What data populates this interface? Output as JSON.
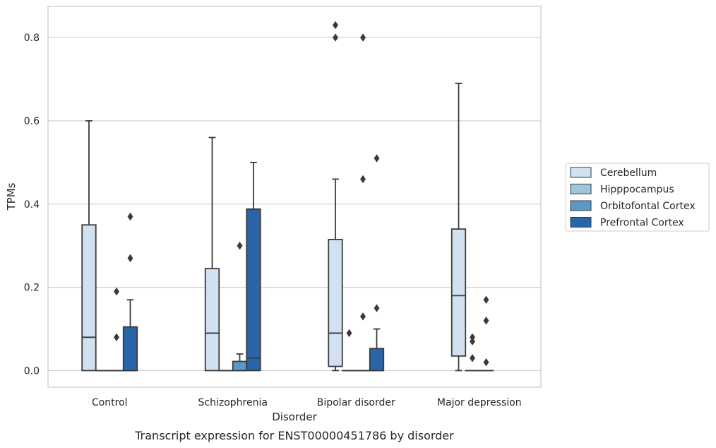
{
  "chart_data": {
    "type": "box",
    "caption": "Transcript expression for ENST00000451786 by disorder",
    "xlabel": "Disorder",
    "ylabel": "TPMs",
    "ylim": [
      -0.04,
      0.875
    ],
    "yticks": [
      0.0,
      0.2,
      0.4,
      0.6,
      0.8
    ],
    "ytick_labels": [
      "0.0",
      "0.2",
      "0.4",
      "0.6",
      "0.8"
    ],
    "grid": "horizontal",
    "legend_position": "right",
    "categories": [
      "Control",
      "Schizophrenia",
      "Bipolar disorder",
      "Major depression"
    ],
    "series": [
      {
        "name": "Cerebellum",
        "color": "#d2e1f0",
        "boxes": [
          {
            "whislo": 0.0,
            "q1": 0.0,
            "med": 0.08,
            "q3": 0.35,
            "whishi": 0.6,
            "fliers": []
          },
          {
            "whislo": 0.0,
            "q1": 0.0,
            "med": 0.09,
            "q3": 0.245,
            "whishi": 0.56,
            "fliers": []
          },
          {
            "whislo": 0.0,
            "q1": 0.01,
            "med": 0.09,
            "q3": 0.315,
            "whishi": 0.46,
            "fliers": [
              0.8,
              0.83
            ]
          },
          {
            "whislo": 0.0,
            "q1": 0.035,
            "med": 0.18,
            "q3": 0.34,
            "whishi": 0.69,
            "fliers": []
          }
        ]
      },
      {
        "name": "Hipppocampus",
        "color": "#9ec4de",
        "boxes": [
          {
            "whislo": 0.0,
            "q1": 0.0,
            "med": 0.0,
            "q3": 0.0,
            "whishi": 0.0,
            "fliers": []
          },
          {
            "whislo": 0.0,
            "q1": 0.0,
            "med": 0.0,
            "q3": 0.0,
            "whishi": 0.0,
            "fliers": []
          },
          {
            "whislo": 0.0,
            "q1": 0.0,
            "med": 0.0,
            "q3": 0.0,
            "whishi": 0.0,
            "fliers": [
              0.09
            ]
          },
          {
            "whislo": 0.0,
            "q1": 0.0,
            "med": 0.0,
            "q3": 0.0,
            "whishi": 0.0,
            "fliers": [
              0.03,
              0.07,
              0.08
            ]
          }
        ]
      },
      {
        "name": "Orbitofontal Cortex",
        "color": "#5a99c6",
        "boxes": [
          {
            "whislo": 0.0,
            "q1": 0.0,
            "med": 0.0,
            "q3": 0.0,
            "whishi": 0.0,
            "fliers": [
              0.08,
              0.19
            ]
          },
          {
            "whislo": 0.0,
            "q1": 0.0,
            "med": 0.0,
            "q3": 0.022,
            "whishi": 0.04,
            "fliers": [
              0.3
            ]
          },
          {
            "whislo": 0.0,
            "q1": 0.0,
            "med": 0.0,
            "q3": 0.0,
            "whishi": 0.0,
            "fliers": [
              0.13,
              0.46,
              0.8
            ]
          },
          {
            "whislo": 0.0,
            "q1": 0.0,
            "med": 0.0,
            "q3": 0.0,
            "whishi": 0.0,
            "fliers": [
              0.02,
              0.12,
              0.17
            ]
          }
        ]
      },
      {
        "name": "Prefrontal Cortex",
        "color": "#2965a9",
        "boxes": [
          {
            "whislo": 0.0,
            "q1": 0.0,
            "med": 0.0,
            "q3": 0.105,
            "whishi": 0.17,
            "fliers": [
              0.27,
              0.37
            ]
          },
          {
            "whislo": 0.0,
            "q1": 0.0,
            "med": 0.03,
            "q3": 0.388,
            "whishi": 0.5,
            "fliers": []
          },
          {
            "whislo": 0.0,
            "q1": 0.0,
            "med": 0.0,
            "q3": 0.053,
            "whishi": 0.1,
            "fliers": [
              0.15,
              0.51
            ]
          },
          null
        ]
      }
    ]
  }
}
